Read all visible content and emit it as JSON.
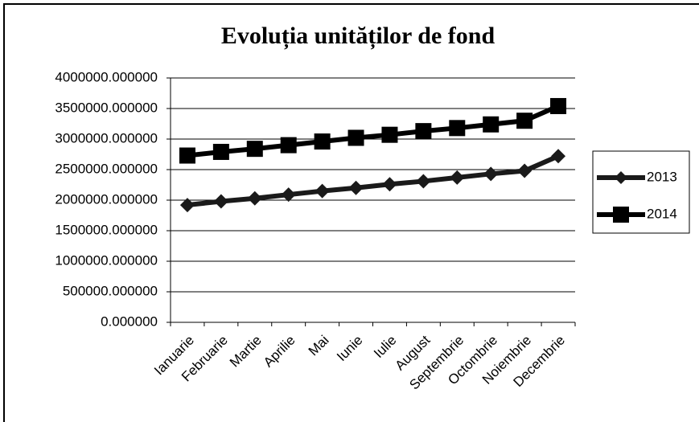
{
  "chart_data": {
    "type": "line",
    "title": "Evoluția unităților de fond",
    "categories": [
      "Ianuarie",
      "Februarie",
      "Martie",
      "Aprilie",
      "Mai",
      "Iunie",
      "Iulie",
      "August",
      "Septembrie",
      "Octombrie",
      "Noiembrie",
      "Decembrie"
    ],
    "series": [
      {
        "name": "2013",
        "color": "#1a1a1a",
        "marker": "diamond",
        "values": [
          1920000,
          1980000,
          2030000,
          2090000,
          2150000,
          2200000,
          2260000,
          2310000,
          2370000,
          2430000,
          2480000,
          2720000
        ]
      },
      {
        "name": "2014",
        "color": "#000000",
        "marker": "square",
        "values": [
          2730000,
          2790000,
          2840000,
          2900000,
          2960000,
          3020000,
          3070000,
          3130000,
          3180000,
          3240000,
          3300000,
          3540000
        ]
      }
    ],
    "ylim": [
      0,
      4000000
    ],
    "yticks": [
      {
        "value": 0,
        "label": "0.000000"
      },
      {
        "value": 500000,
        "label": "500000.000000"
      },
      {
        "value": 1000000,
        "label": "1000000.000000"
      },
      {
        "value": 1500000,
        "label": "1500000.000000"
      },
      {
        "value": 2000000,
        "label": "2000000.000000"
      },
      {
        "value": 2500000,
        "label": "2500000.000000"
      },
      {
        "value": 3000000,
        "label": "3000000.000000"
      },
      {
        "value": 3500000,
        "label": "3500000.000000"
      },
      {
        "value": 4000000,
        "label": "4000000.000000"
      }
    ],
    "grid": true,
    "legend": "right"
  }
}
